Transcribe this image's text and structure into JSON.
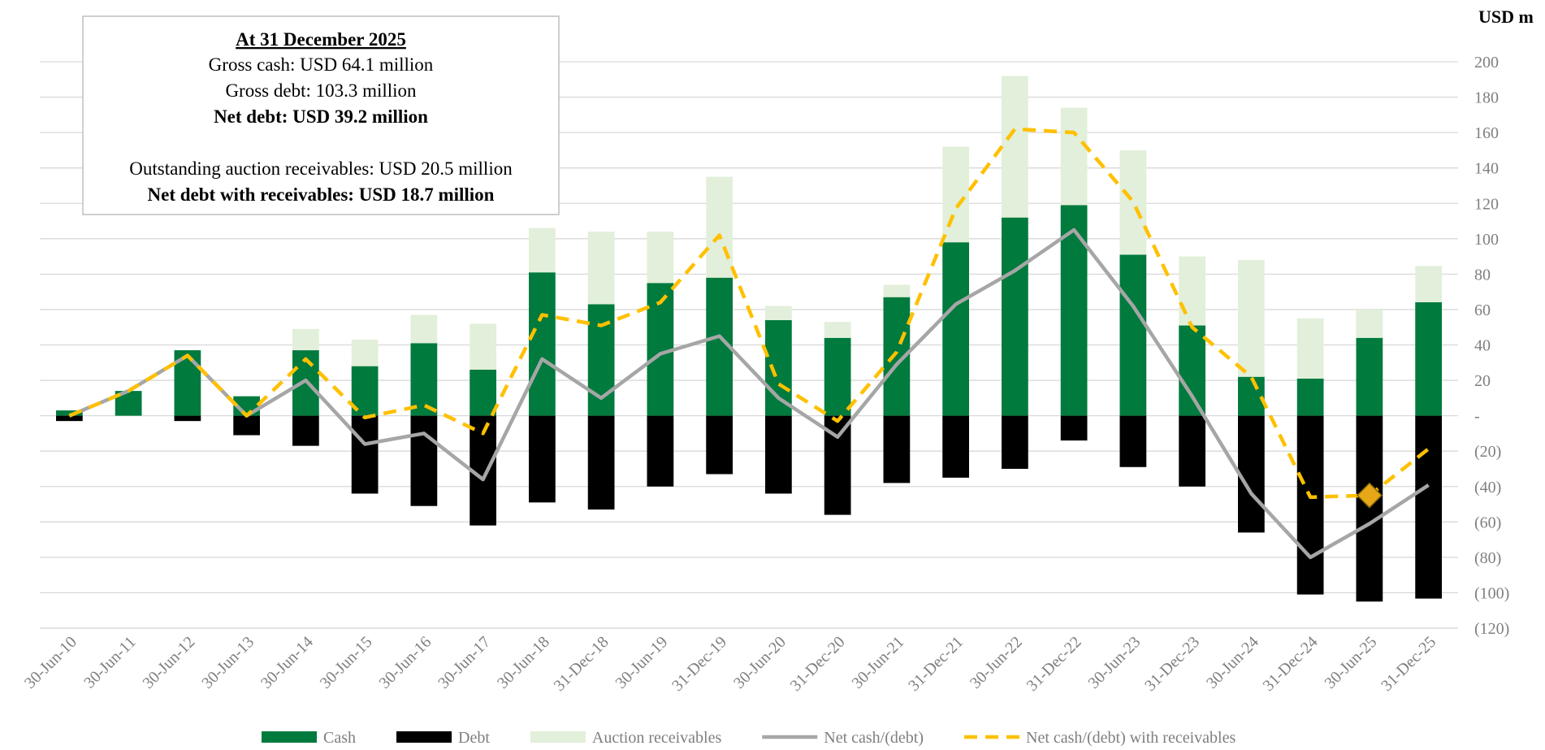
{
  "chart_data": {
    "type": "bar",
    "y_axis_label": "USD m",
    "categories": [
      "30-Jun-10",
      "30-Jun-11",
      "30-Jun-12",
      "30-Jun-13",
      "30-Jun-14",
      "30-Jun-15",
      "30-Jun-16",
      "30-Jun-17",
      "30-Jun-18",
      "31-Dec-18",
      "30-Jun-19",
      "31-Dec-19",
      "30-Jun-20",
      "31-Dec-20",
      "30-Jun-21",
      "31-Dec-21",
      "30-Jun-22",
      "31-Dec-22",
      "30-Jun-23",
      "31-Dec-23",
      "30-Jun-24",
      "31-Dec-24",
      "30-Jun-25",
      "31-Dec-25"
    ],
    "series": [
      {
        "name": "Cash",
        "kind": "bar",
        "stack": "pos",
        "color": "#007a3d",
        "values": [
          3,
          14,
          37,
          11,
          37,
          28,
          41,
          26,
          81,
          63,
          75,
          78,
          54,
          44,
          67,
          98,
          112,
          119,
          91,
          51,
          22,
          21,
          44,
          64.1
        ]
      },
      {
        "name": "Debt",
        "kind": "bar",
        "stack": "neg",
        "color": "#000000",
        "values": [
          -3,
          0,
          -3,
          -11,
          -17,
          -44,
          -51,
          -62,
          -49,
          -53,
          -40,
          -33,
          -44,
          -56,
          -38,
          -35,
          -30,
          -14,
          -29,
          -40,
          -66,
          -101,
          -105,
          -103.3
        ]
      },
      {
        "name": "Auction receivables",
        "kind": "bar",
        "stack": "pos",
        "color": "#e2efda",
        "values": [
          0,
          0,
          0,
          0,
          12,
          15,
          16,
          26,
          25,
          41,
          29,
          57,
          8,
          9,
          7,
          54,
          80,
          55,
          59,
          39,
          66,
          34,
          16,
          20.5
        ]
      },
      {
        "name": "Net cash/(debt)",
        "kind": "line",
        "dashed": false,
        "color": "#a6a6a6",
        "values": [
          0,
          14,
          34,
          0,
          20,
          -16,
          -10,
          -36,
          32,
          10,
          35,
          45,
          10,
          -12,
          29,
          63,
          82,
          105,
          62,
          11,
          -44,
          -80,
          -61,
          -39.2
        ]
      },
      {
        "name": "Net cash/(debt) with receivables",
        "kind": "line",
        "dashed": true,
        "color": "#ffc000",
        "marker_index": 22,
        "marker_color": "#e6a817",
        "values": [
          0,
          14,
          34,
          0,
          32,
          -1,
          6,
          -10,
          57,
          51,
          64,
          102,
          18,
          -3,
          36,
          117,
          162,
          160,
          121,
          50,
          22,
          -46,
          -45,
          -18.7
        ]
      }
    ],
    "ylim": [
      -120,
      200
    ],
    "yticks": [
      200,
      180,
      160,
      140,
      120,
      100,
      80,
      60,
      40,
      20,
      {
        "value": 0,
        "label": "-"
      },
      {
        "value": -20,
        "label": "(20)"
      },
      {
        "value": -40,
        "label": "(40)"
      },
      {
        "value": -60,
        "label": "(60)"
      },
      {
        "value": -80,
        "label": "(80)"
      },
      {
        "value": -100,
        "label": "(100)"
      },
      {
        "value": -120,
        "label": "(120)"
      }
    ],
    "grid": true,
    "legend": "bottom",
    "annotation": {
      "title": "At 31 December 2025",
      "lines": [
        "Gross cash: USD 64.1 million",
        "Gross debt: 103.3 million",
        "Net debt: USD 39.2 million",
        "Outstanding auction receivables: USD 20.5 million",
        "Net debt with receivables: USD 18.7 million"
      ],
      "bold_lines": [
        2,
        4
      ]
    }
  }
}
